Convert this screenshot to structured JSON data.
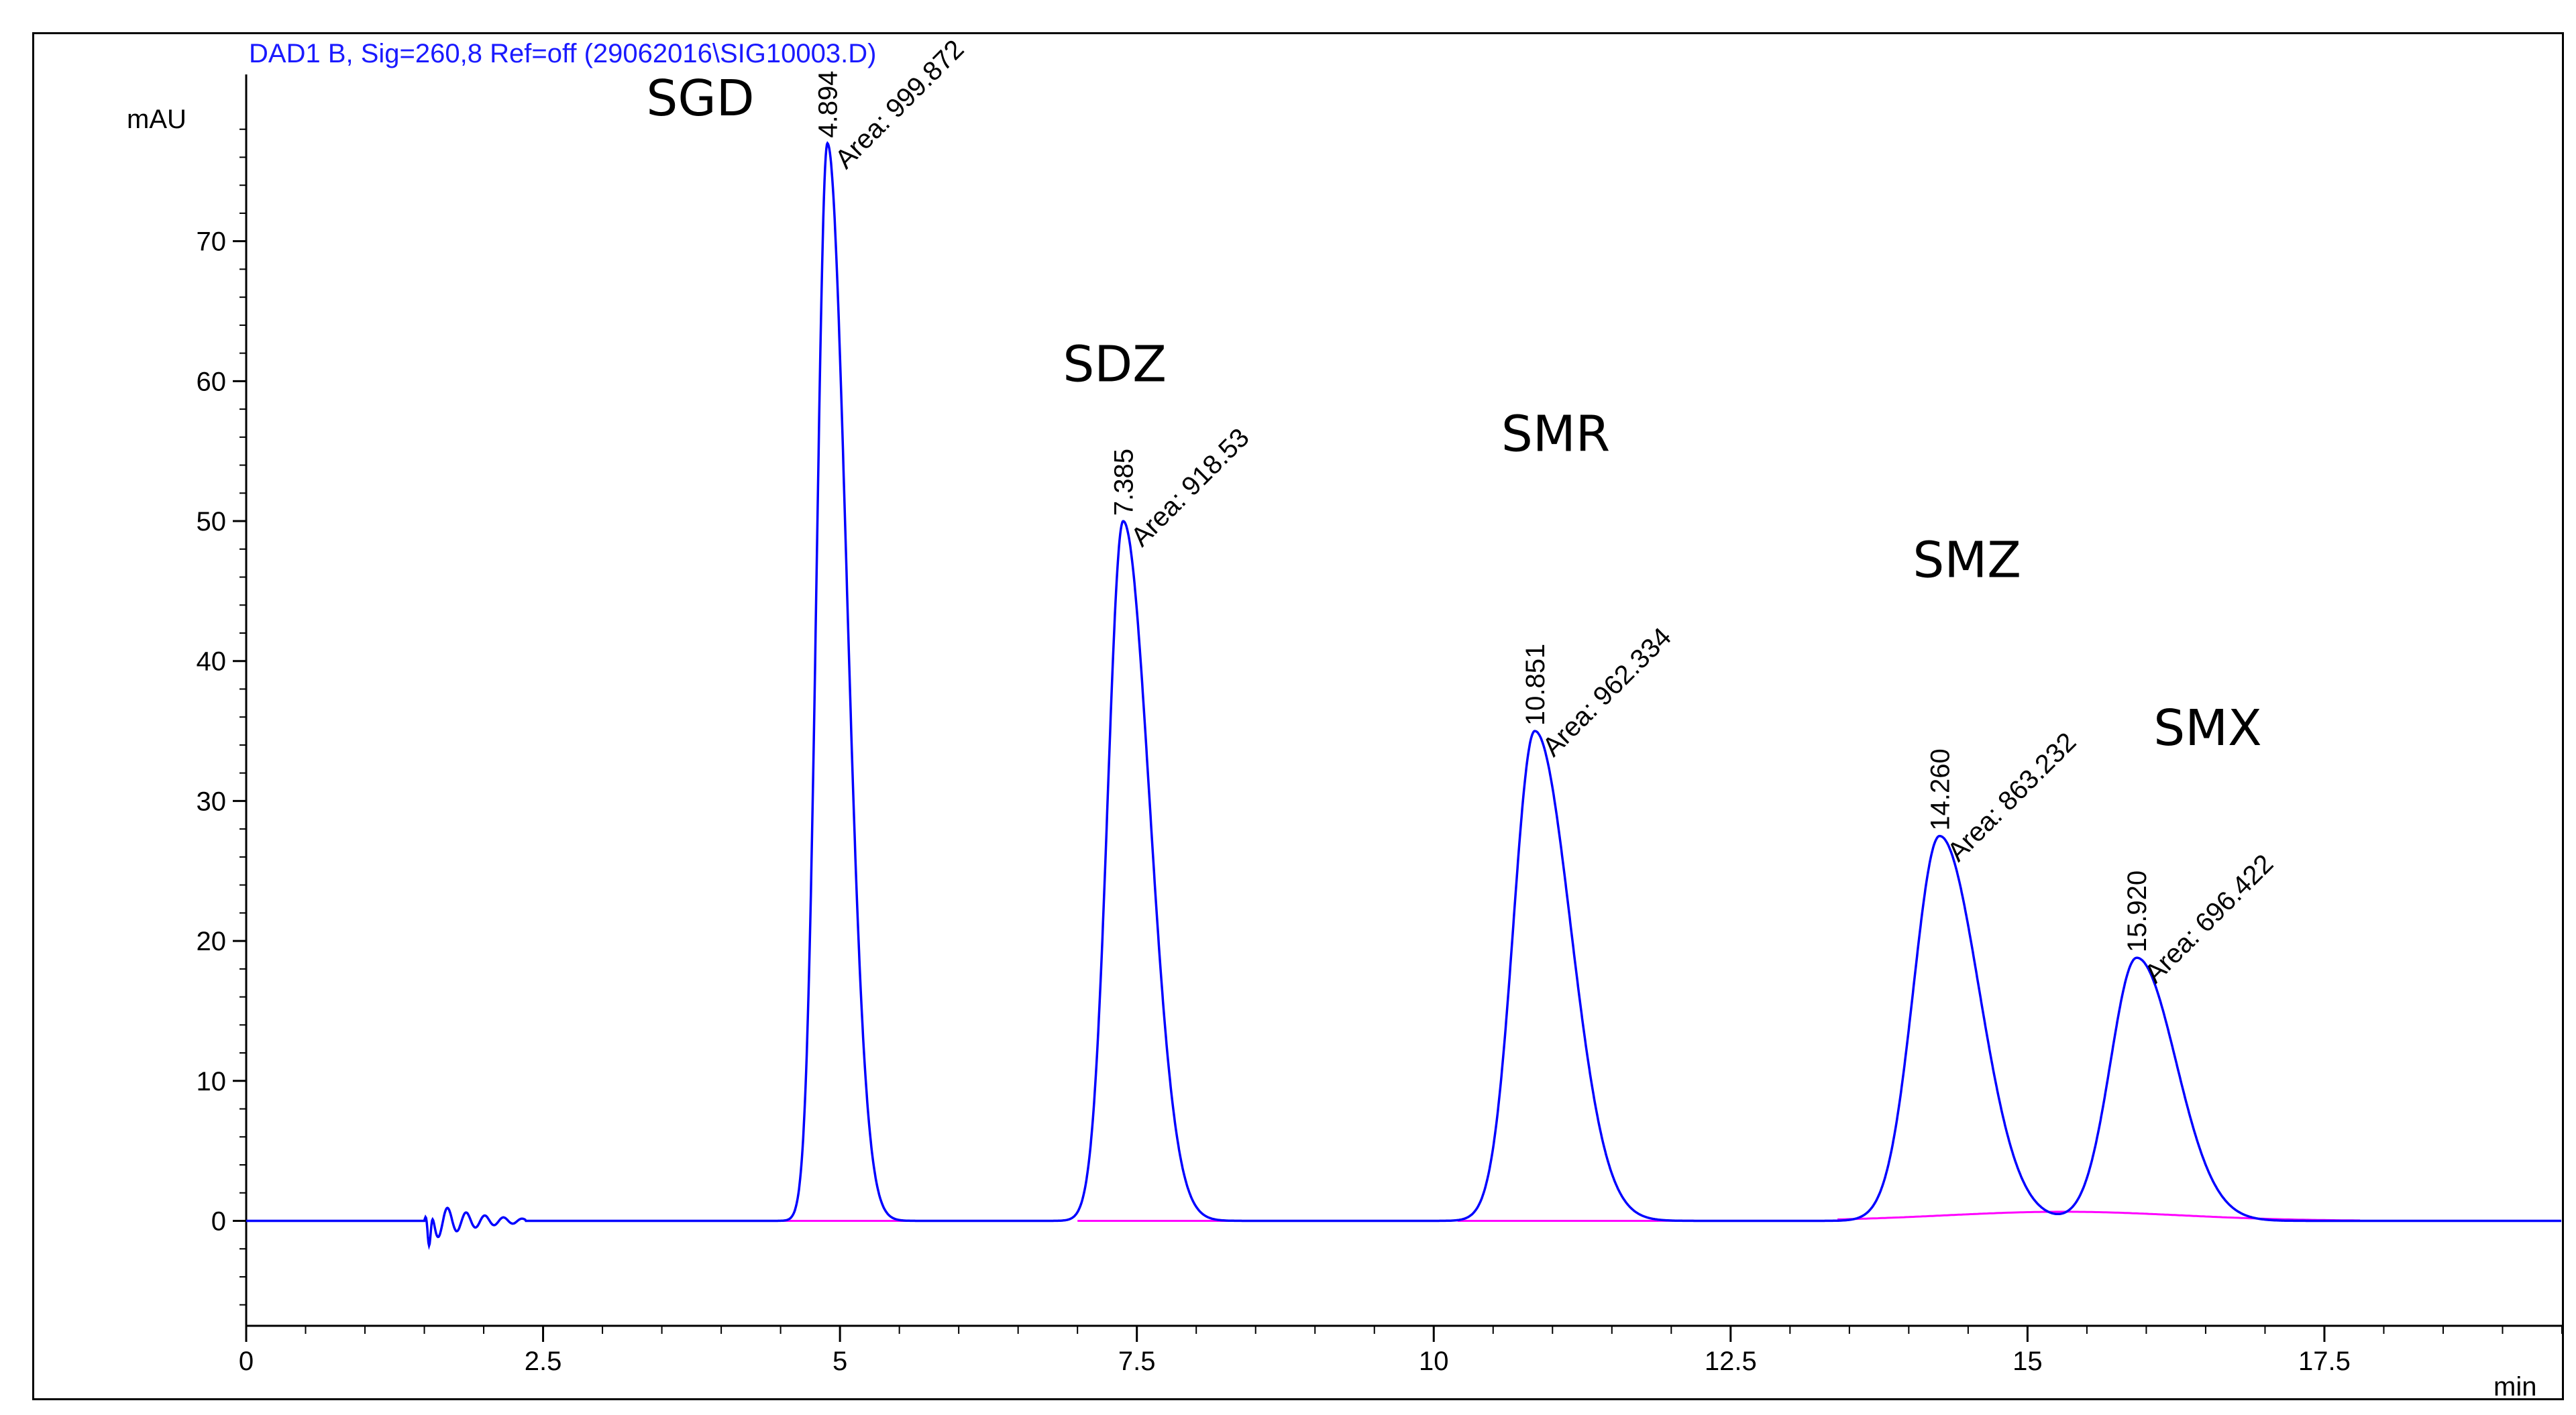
{
  "chart_data": {
    "type": "line",
    "title": "DAD1 B, Sig=260,8 Ref=off (29062016\\SIG10003.D)",
    "xlabel": "min",
    "ylabel": "mAU",
    "xlim": [
      0,
      19.5
    ],
    "ylim": [
      -7.5,
      80
    ],
    "xticks": [
      0,
      2.5,
      5,
      7.5,
      10,
      12.5,
      15,
      17.5
    ],
    "xtick_labels": [
      "0",
      "2.5",
      "5",
      "7.5",
      "10",
      "12.5",
      "15",
      "17.5"
    ],
    "yticks": [
      0,
      10,
      20,
      30,
      40,
      50,
      60,
      70
    ],
    "ytick_labels": [
      "0",
      "10",
      "20",
      "30",
      "40",
      "50",
      "60",
      "70"
    ],
    "series": [
      {
        "name": "signal",
        "color": "#0000ff"
      },
      {
        "name": "baseline",
        "color": "#ff00ff"
      }
    ],
    "peaks": [
      {
        "name": "SGD",
        "rt": 4.894,
        "rt_label": "4.894",
        "height": 77,
        "width": 0.09,
        "tail": 0.16,
        "area_label": "Area: 999.872"
      },
      {
        "name": "SDZ",
        "rt": 7.385,
        "rt_label": "7.385",
        "height": 50,
        "width": 0.13,
        "tail": 0.22,
        "area_label": "Area: 918.53"
      },
      {
        "name": "SMR",
        "rt": 10.851,
        "rt_label": "10.851",
        "height": 35,
        "width": 0.18,
        "tail": 0.3,
        "area_label": "Area: 962.334"
      },
      {
        "name": "SMZ",
        "rt": 14.26,
        "rt_label": "14.260",
        "height": 27.5,
        "width": 0.22,
        "tail": 0.33,
        "area_label": "Area: 863.232"
      },
      {
        "name": "SMX",
        "rt": 15.92,
        "rt_label": "15.920",
        "height": 18.8,
        "width": 0.22,
        "tail": 0.33,
        "area_label": "Area: 696.422"
      }
    ]
  }
}
